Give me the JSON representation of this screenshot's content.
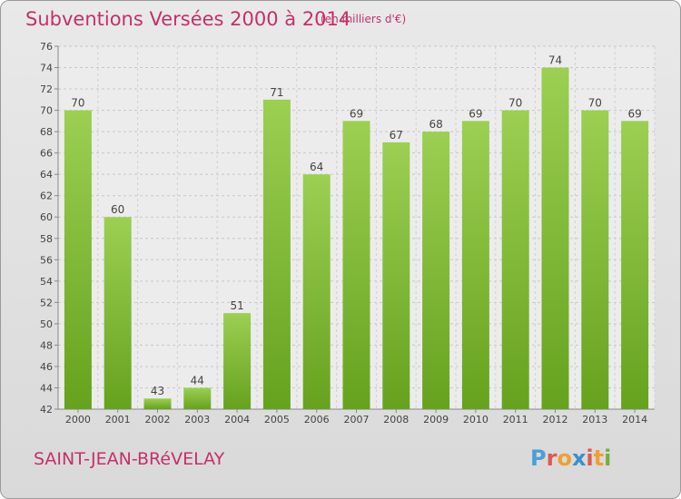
{
  "header": {
    "title": "Subventions Versées 2000 à 2014",
    "subtitle": "(en milliers d'€)"
  },
  "footer": {
    "commune": "SAINT-JEAN-BRéVELAY",
    "logo_text": "Proxiti",
    "logo_colors": [
      "#4a9fd8",
      "#e0584f",
      "#f0a030",
      "#3a8fd0",
      "#e0584f",
      "#f0a030",
      "#70b040"
    ]
  },
  "chart_data": {
    "type": "bar",
    "categories": [
      "2000",
      "2001",
      "2002",
      "2003",
      "2004",
      "2005",
      "2006",
      "2007",
      "2008",
      "2009",
      "2010",
      "2011",
      "2012",
      "2013",
      "2014"
    ],
    "values": [
      70,
      60,
      43,
      44,
      51,
      71,
      64,
      69,
      67,
      68,
      69,
      70,
      74,
      70,
      69
    ],
    "title": "Subventions Versées 2000 à 2014",
    "ylim": [
      42,
      76
    ],
    "yticks": [
      42,
      44,
      46,
      48,
      50,
      52,
      54,
      56,
      58,
      60,
      62,
      64,
      66,
      68,
      70,
      72,
      74,
      76
    ],
    "grid": true,
    "bar_color": "#7cbc2c",
    "data_labels": true
  }
}
